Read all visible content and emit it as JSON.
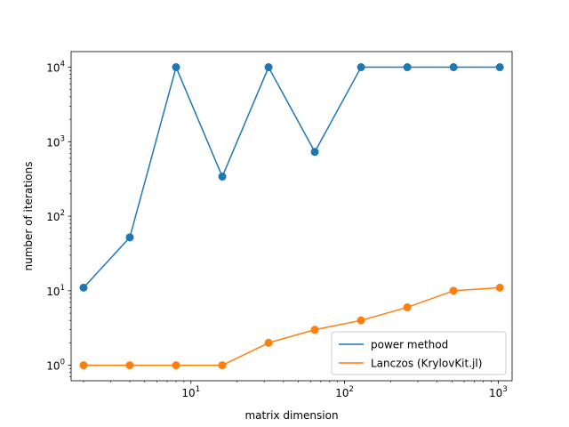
{
  "chart_data": {
    "type": "line",
    "xlabel": "matrix dimension",
    "ylabel": "number of iterations",
    "xscale": "log",
    "yscale": "log",
    "xlim": [
      1.66,
      1231
    ],
    "ylim": [
      0.62,
      16200
    ],
    "x_ticks": [
      {
        "value": 10,
        "base": "10",
        "exp": "1"
      },
      {
        "value": 100,
        "base": "10",
        "exp": "2"
      },
      {
        "value": 1000,
        "base": "10",
        "exp": "3"
      }
    ],
    "y_ticks": [
      {
        "value": 1,
        "base": "10",
        "exp": "0"
      },
      {
        "value": 10,
        "base": "10",
        "exp": "1"
      },
      {
        "value": 100,
        "base": "10",
        "exp": "2"
      },
      {
        "value": 1000,
        "base": "10",
        "exp": "3"
      },
      {
        "value": 10000,
        "base": "10",
        "exp": "4"
      }
    ],
    "x": [
      2,
      4,
      8,
      16,
      32,
      64,
      128,
      256,
      512,
      1024
    ],
    "series": [
      {
        "name": "power method",
        "color": "#1f77b4",
        "values": [
          11,
          52,
          10000,
          340,
          10000,
          730,
          10000,
          10000,
          10000,
          10000
        ]
      },
      {
        "name": "Lanczos (KrylovKit.jl)",
        "color": "#ff7f0e",
        "values": [
          1,
          1,
          1,
          1,
          2,
          3,
          4,
          6,
          10,
          11
        ]
      }
    ],
    "legend_position": "lower-right",
    "grid": false
  }
}
